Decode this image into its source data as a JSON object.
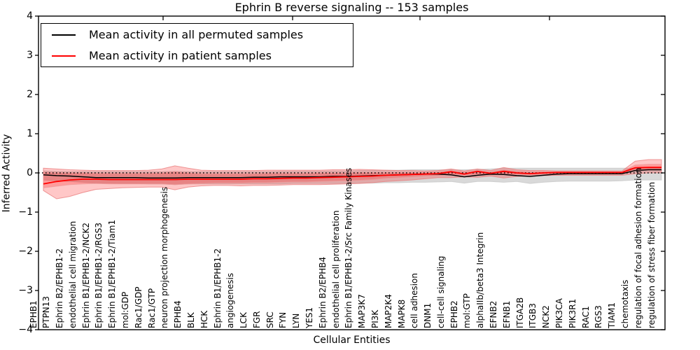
{
  "chart_data": {
    "type": "line",
    "title": "Ephrin B reverse signaling -- 153 samples",
    "xlabel": "Cellular Entities",
    "ylabel": "Inferred Activity",
    "ylim": [
      -4,
      4
    ],
    "grid": false,
    "legend_position": "upper left",
    "yticks": [
      {
        "value": 4,
        "label": "4"
      },
      {
        "value": 3,
        "label": "3"
      },
      {
        "value": 2,
        "label": "2"
      },
      {
        "value": 1,
        "label": "1"
      },
      {
        "value": 0,
        "label": "0"
      },
      {
        "value": -1,
        "label": "−1"
      },
      {
        "value": -2,
        "label": "−2"
      },
      {
        "value": -3,
        "label": "−3"
      },
      {
        "value": -4,
        "label": "−4"
      }
    ],
    "zero_line": {
      "style": "dotted",
      "color": "#000000",
      "y": 0
    },
    "categories": [
      "EPHB1",
      "PTPN13",
      "Ephrin B2/EPHB1-2",
      "endothelial cell migration",
      "Ephrin B1/EPHB1-2/NCK2",
      "Ephrin B1/EPHB1-2/RGS3",
      "Ephrin B1/EPHB1-2/Tiam1",
      "mol:GDP",
      "Rac1/GDP",
      "Rac1/GTP",
      "neuron projection morphogenesis",
      "EPHB4",
      "BLK",
      "HCK",
      "Ephrin B1/EPHB1-2",
      "angiogenesis",
      "LCK",
      "FGR",
      "SRC",
      "FYN",
      "LYN",
      "YES1",
      "Ephrin B2/EPHB4",
      "endothelial cell proliferation",
      "Ephrin B1/EPHB1-2/Src Family Kinases",
      "MAP3K7",
      "PI3K",
      "MAP2K4",
      "MAPK8",
      "cell adhesion",
      "DNM1",
      "cell-cell signaling",
      "EPHB2",
      "mol:GTP",
      "alphaIIb/beta3 Integrin",
      "EFNB2",
      "EFNB1",
      "ITGA2B",
      "ITGB3",
      "NCK2",
      "PIK3CA",
      "PIK3R1",
      "RAC1",
      "RGS3",
      "TIAM1",
      "chemotaxis",
      "regulation of focal adhesion formation",
      "regulation of stress fiber formation"
    ],
    "series": [
      {
        "name": "Mean activity in all permuted samples",
        "color": "#000000",
        "width": 1.5,
        "values": [
          -0.05,
          -0.07,
          -0.08,
          -0.1,
          -0.12,
          -0.12,
          -0.12,
          -0.12,
          -0.13,
          -0.13,
          -0.13,
          -0.12,
          -0.12,
          -0.12,
          -0.12,
          -0.12,
          -0.11,
          -0.11,
          -0.1,
          -0.1,
          -0.1,
          -0.1,
          -0.09,
          -0.09,
          -0.08,
          -0.07,
          -0.06,
          -0.05,
          -0.04,
          -0.03,
          -0.03,
          -0.05,
          -0.1,
          -0.06,
          -0.03,
          -0.04,
          -0.07,
          -0.09,
          -0.06,
          -0.03,
          -0.02,
          -0.02,
          -0.02,
          -0.02,
          -0.02,
          0.06,
          0.08,
          0.08
        ]
      },
      {
        "name": "Mean activity in patient samples",
        "color": "#ff0000",
        "width": 1.8,
        "values": [
          -0.28,
          -0.22,
          -0.18,
          -0.16,
          -0.16,
          -0.17,
          -0.17,
          -0.17,
          -0.17,
          -0.17,
          -0.17,
          -0.16,
          -0.16,
          -0.16,
          -0.16,
          -0.16,
          -0.15,
          -0.15,
          -0.14,
          -0.13,
          -0.13,
          -0.12,
          -0.11,
          -0.1,
          -0.09,
          -0.08,
          -0.06,
          -0.05,
          -0.04,
          -0.03,
          -0.02,
          0.03,
          -0.03,
          0.04,
          -0.01,
          0.04,
          0.0,
          -0.02,
          0.0,
          0.01,
          0.01,
          0.01,
          0.01,
          0.01,
          0.01,
          0.13,
          0.14,
          0.14
        ]
      }
    ],
    "bands": [
      {
        "name": "permuted-samples-range",
        "color": "#aaaaaa",
        "opacity": 0.45,
        "edge": "#c8c8c8",
        "low": [
          -0.18,
          -0.2,
          -0.22,
          -0.24,
          -0.26,
          -0.26,
          -0.27,
          -0.27,
          -0.28,
          -0.28,
          -0.3,
          -0.28,
          -0.28,
          -0.28,
          -0.28,
          -0.28,
          -0.28,
          -0.28,
          -0.28,
          -0.27,
          -0.27,
          -0.27,
          -0.27,
          -0.26,
          -0.26,
          -0.26,
          -0.25,
          -0.25,
          -0.24,
          -0.24,
          -0.23,
          -0.22,
          -0.26,
          -0.22,
          -0.22,
          -0.24,
          -0.22,
          -0.27,
          -0.24,
          -0.22,
          -0.21,
          -0.21,
          -0.21,
          -0.21,
          -0.2,
          -0.18,
          -0.18,
          -0.18
        ],
        "high": [
          0.05,
          0.04,
          0.03,
          0.03,
          0.03,
          0.03,
          0.03,
          0.03,
          0.03,
          0.03,
          0.04,
          0.03,
          0.03,
          0.03,
          0.03,
          0.03,
          0.03,
          0.03,
          0.04,
          0.04,
          0.04,
          0.04,
          0.05,
          0.05,
          0.06,
          0.06,
          0.07,
          0.07,
          0.08,
          0.08,
          0.08,
          0.08,
          0.08,
          0.09,
          0.1,
          0.12,
          0.12,
          0.12,
          0.12,
          0.12,
          0.12,
          0.12,
          0.12,
          0.12,
          0.12,
          0.12,
          0.14,
          0.14
        ]
      },
      {
        "name": "patient-samples-range-outer",
        "color": "#ff0000",
        "opacity": 0.22,
        "edge": "#ea8080",
        "low": [
          -0.45,
          -0.66,
          -0.6,
          -0.5,
          -0.42,
          -0.4,
          -0.38,
          -0.37,
          -0.36,
          -0.36,
          -0.43,
          -0.36,
          -0.33,
          -0.32,
          -0.32,
          -0.33,
          -0.32,
          -0.32,
          -0.31,
          -0.3,
          -0.3,
          -0.3,
          -0.29,
          -0.28,
          -0.27,
          -0.25,
          -0.22,
          -0.2,
          -0.18,
          -0.15,
          -0.12,
          -0.12,
          -0.1,
          -0.11,
          -0.08,
          -0.13,
          -0.09,
          -0.08,
          -0.07,
          -0.06,
          -0.06,
          -0.06,
          -0.06,
          -0.06,
          -0.06,
          -0.02,
          0.0,
          0.0
        ],
        "high": [
          0.12,
          0.1,
          0.08,
          0.07,
          0.06,
          0.06,
          0.06,
          0.06,
          0.07,
          0.1,
          0.18,
          0.12,
          0.07,
          0.06,
          0.06,
          0.06,
          0.06,
          0.07,
          0.07,
          0.07,
          0.07,
          0.07,
          0.08,
          0.08,
          0.09,
          0.08,
          0.07,
          0.06,
          0.06,
          0.05,
          0.06,
          0.1,
          0.05,
          0.1,
          0.06,
          0.14,
          0.08,
          0.06,
          0.06,
          0.05,
          0.05,
          0.05,
          0.05,
          0.05,
          0.05,
          0.3,
          0.34,
          0.34
        ]
      },
      {
        "name": "patient-samples-range-inner",
        "color": "#ff0000",
        "opacity": 0.22,
        "edge": "#ee9a9a",
        "low": [
          -0.38,
          -0.34,
          -0.3,
          -0.28,
          -0.27,
          -0.28,
          -0.28,
          -0.28,
          -0.28,
          -0.28,
          -0.3,
          -0.28,
          -0.27,
          -0.26,
          -0.26,
          -0.26,
          -0.25,
          -0.25,
          -0.24,
          -0.23,
          -0.23,
          -0.22,
          -0.21,
          -0.2,
          -0.19,
          -0.17,
          -0.14,
          -0.12,
          -0.1,
          -0.08,
          -0.07,
          -0.04,
          -0.06,
          -0.04,
          -0.05,
          -0.05,
          -0.04,
          -0.05,
          -0.03,
          -0.02,
          -0.02,
          -0.02,
          -0.02,
          -0.02,
          -0.02,
          0.06,
          0.08,
          0.08
        ],
        "high": [
          0.02,
          0.01,
          0.0,
          0.0,
          -0.01,
          -0.01,
          -0.01,
          -0.01,
          -0.01,
          0.0,
          0.03,
          0.0,
          -0.02,
          -0.02,
          -0.02,
          -0.02,
          -0.02,
          -0.01,
          -0.01,
          -0.01,
          -0.01,
          0.0,
          0.0,
          0.0,
          0.01,
          0.01,
          0.01,
          0.01,
          0.01,
          0.01,
          0.02,
          0.06,
          0.02,
          0.06,
          0.02,
          0.08,
          0.04,
          0.02,
          0.03,
          0.03,
          0.03,
          0.03,
          0.03,
          0.03,
          0.03,
          0.2,
          0.22,
          0.22
        ]
      }
    ]
  }
}
